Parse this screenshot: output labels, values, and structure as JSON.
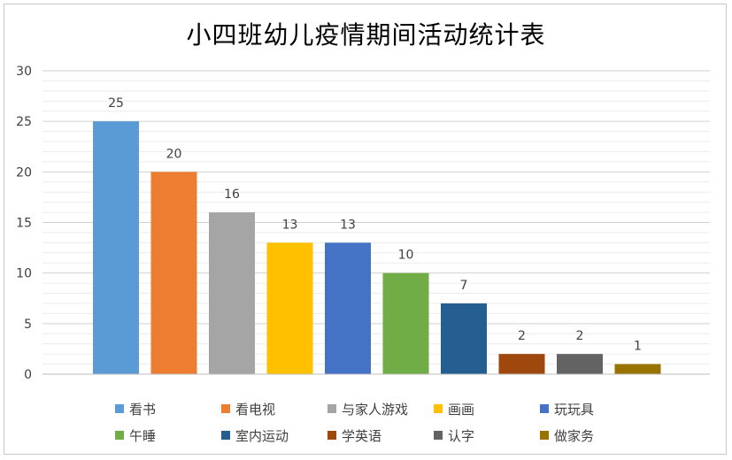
{
  "chart_data": {
    "type": "bar",
    "title": "小四班幼儿疫情期间活动统计表",
    "xlabel": "",
    "ylabel": "",
    "ylim": [
      0,
      30
    ],
    "yticks": [
      "0",
      "5",
      "10",
      "15",
      "20",
      "25",
      "30"
    ],
    "grid": true,
    "legend_position": "bottom",
    "categories": [
      "看书",
      "看电视",
      "与家人游戏",
      "画画",
      "玩玩具",
      "午睡",
      "室内运动",
      "学英语",
      "认字",
      "做家务"
    ],
    "values": [
      25,
      20,
      16,
      13,
      13,
      10,
      7,
      2,
      2,
      1
    ],
    "data_labels": [
      "25",
      "20",
      "16",
      "13",
      "13",
      "10",
      "7",
      "2",
      "2",
      "1"
    ],
    "colors": [
      "#5b9bd5",
      "#ed7d31",
      "#a5a5a5",
      "#ffc000",
      "#4472c4",
      "#70ad47",
      "#255e91",
      "#9e480e",
      "#636363",
      "#997300"
    ]
  }
}
